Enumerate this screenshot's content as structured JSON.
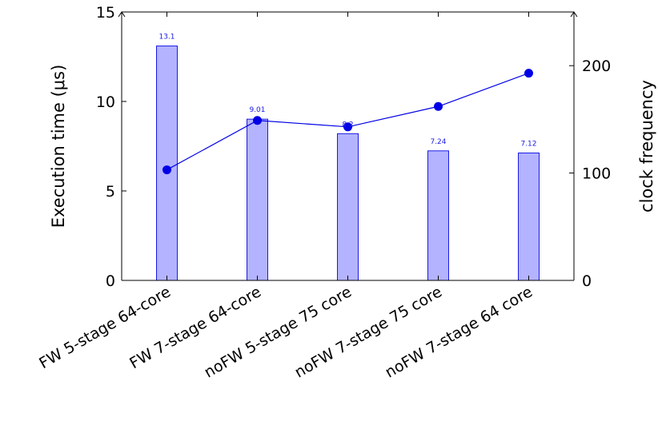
{
  "chart_data": {
    "type": "bar+line",
    "categories": [
      "FW 5-stage 64-core",
      "FW 7-stage 64-core",
      "noFW 5-stage 75 core",
      "noFW 7-stage 75 core",
      "noFW 7-stage 64 core"
    ],
    "series": [
      {
        "name": "",
        "type": "bar",
        "axis": "left",
        "values": [
          13.1,
          9.01,
          8.2,
          7.24,
          7.12
        ],
        "labels": [
          "13.1",
          "9.01",
          "8.2",
          "7.24",
          "7.12"
        ],
        "fill": "#b3b3ff",
        "stroke": "#1a1ae6"
      },
      {
        "name": "",
        "type": "line",
        "axis": "right",
        "values": [
          103,
          149,
          143,
          162,
          193
        ],
        "color": "#0000e6"
      }
    ],
    "title": "",
    "xlabel": "",
    "ylabel": "Execution time (μs)",
    "y2label": "clock frequency",
    "ylim": [
      0,
      15
    ],
    "y2lim": [
      0,
      250
    ],
    "yticks": [
      0,
      5,
      10,
      15
    ],
    "y2ticks": [
      0,
      100,
      200
    ],
    "grid": false,
    "legend": "none"
  }
}
